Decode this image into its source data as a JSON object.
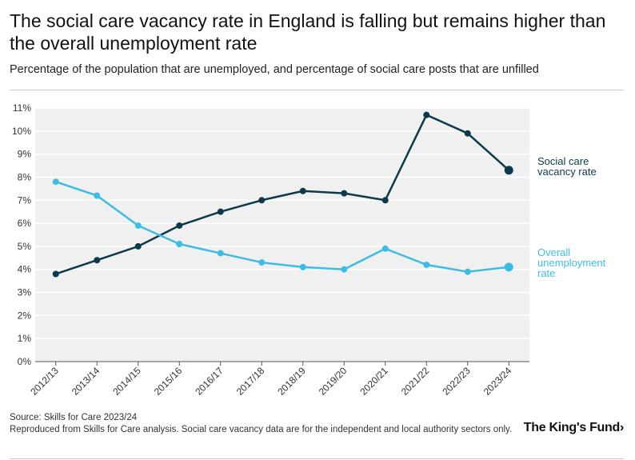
{
  "header": {
    "title": "The social care vacancy rate in England is falling but remains higher than the overall unemployment rate",
    "subtitle": "Percentage of the population that are unemployed, and percentage of social care posts that are unfilled"
  },
  "footer": {
    "source": "Source: Skills for Care 2023/24",
    "note": "Reproduced from Skills for Care analysis. Social care vacancy data are for the independent and local authority sectors only.",
    "logo": "The King's Fund›"
  },
  "colors": {
    "plot_background": "#f0f0f0",
    "gridline": "#ffffff",
    "axis": "#555555"
  },
  "chart_data": {
    "type": "line",
    "title": "The social care vacancy rate in England is falling but remains higher than the overall unemployment rate",
    "xlabel": "",
    "ylabel": "",
    "categories": [
      "2012/13",
      "2013/14",
      "2014/15",
      "2015/16",
      "2016/17",
      "2017/18",
      "2018/19",
      "2019/20",
      "2020/21",
      "2021/22",
      "2022/23",
      "2023/24"
    ],
    "ylim": [
      0,
      11
    ],
    "yticks": [
      0,
      1,
      2,
      3,
      4,
      5,
      6,
      7,
      8,
      9,
      10,
      11
    ],
    "ytick_labels": [
      "0%",
      "1%",
      "2%",
      "3%",
      "4%",
      "5%",
      "6%",
      "7%",
      "8%",
      "9%",
      "10%",
      "11%"
    ],
    "grid": true,
    "series": [
      {
        "name": "Social care vacancy rate",
        "label_lines": [
          "Social care",
          "vacancy rate"
        ],
        "color": "#0d3a4a",
        "values": [
          3.8,
          4.4,
          5.0,
          5.9,
          6.5,
          7.0,
          7.4,
          7.3,
          7.0,
          10.7,
          9.9,
          8.3
        ]
      },
      {
        "name": "Overall unemployment rate",
        "label_lines": [
          "Overall",
          "unemployment",
          "rate"
        ],
        "color": "#3dbde6",
        "values": [
          7.8,
          7.2,
          5.9,
          5.1,
          4.7,
          4.3,
          4.1,
          4.0,
          4.9,
          4.2,
          3.9,
          4.1
        ]
      }
    ]
  }
}
